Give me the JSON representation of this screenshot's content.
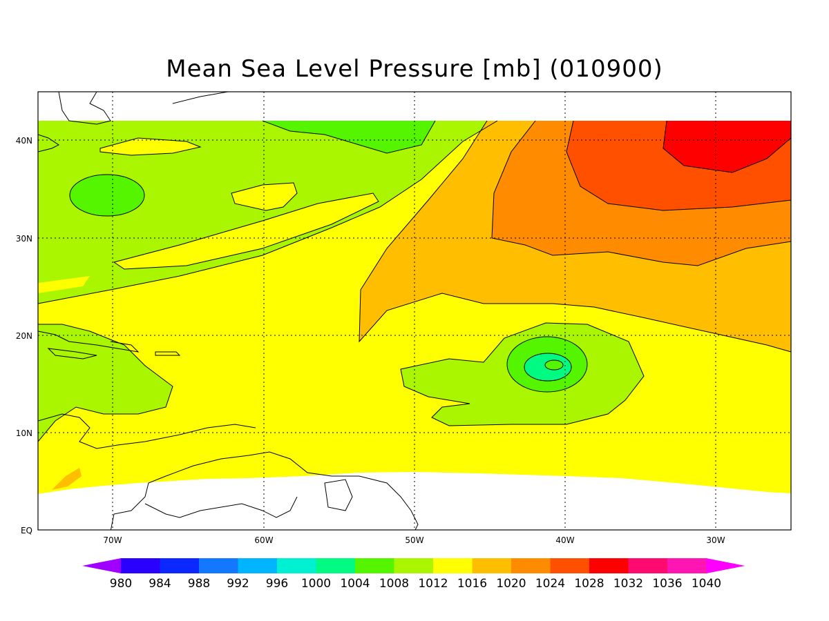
{
  "title": "Mean Sea Level Pressure [mb] (010900)",
  "axes": {
    "lon_labels": [
      "70W",
      "60W",
      "50W",
      "40W",
      "30W"
    ],
    "lat_labels": [
      "40N",
      "30N",
      "20N",
      "10N",
      "EQ"
    ],
    "lon_range": [
      -75,
      -25
    ],
    "lat_range": [
      0,
      45
    ]
  },
  "colorbar": {
    "levels": [
      "980",
      "984",
      "988",
      "992",
      "996",
      "1000",
      "1004",
      "1008",
      "1012",
      "1016",
      "1020",
      "1024",
      "1028",
      "1032",
      "1036",
      "1040"
    ],
    "colors": [
      "#2a00ff",
      "#0a28ff",
      "#1478ff",
      "#00b4ff",
      "#00f0d2",
      "#00fa82",
      "#55f500",
      "#aaf500",
      "#ffff00",
      "#ffbe00",
      "#ff8c00",
      "#ff5000",
      "#ff0000",
      "#ff0a6e",
      "#ff14b4"
    ],
    "under_color": "#a000ff",
    "over_color": "#ff00ff"
  },
  "fields": {
    "c1004": "#55f500",
    "c1008": "#aaf500",
    "c1012": "#ffff00",
    "c1016": "#ffbe00",
    "c1020": "#ff8c00",
    "c1024": "#ff5000",
    "c1028": "#ff0000",
    "c1000": "#00fa82"
  }
}
